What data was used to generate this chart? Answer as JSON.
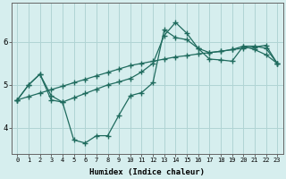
{
  "xlabel": "Humidex (Indice chaleur)",
  "ylabel": "",
  "background_color": "#d6eeee",
  "grid_color": "#b0d4d4",
  "line_color": "#1f6b5e",
  "xlim": [
    -0.5,
    23.5
  ],
  "ylim": [
    3.4,
    6.9
  ],
  "yticks": [
    4,
    5,
    6
  ],
  "xticks": [
    0,
    1,
    2,
    3,
    4,
    5,
    6,
    7,
    8,
    9,
    10,
    11,
    12,
    13,
    14,
    15,
    16,
    17,
    18,
    19,
    20,
    21,
    22,
    23
  ],
  "line1_x": [
    0,
    1,
    2,
    3,
    4,
    5,
    6,
    7,
    8,
    9,
    10,
    11,
    12,
    13,
    14,
    15,
    16,
    17,
    18,
    19,
    20,
    21,
    22,
    23
  ],
  "line1_y": [
    4.65,
    4.73,
    4.81,
    4.89,
    4.97,
    5.05,
    5.13,
    5.21,
    5.29,
    5.37,
    5.45,
    5.5,
    5.55,
    5.6,
    5.65,
    5.68,
    5.72,
    5.75,
    5.78,
    5.82,
    5.85,
    5.88,
    5.92,
    5.5
  ],
  "line2_x": [
    0,
    1,
    2,
    3,
    4,
    5,
    6,
    7,
    8,
    9,
    10,
    11,
    12,
    13,
    14,
    15,
    16,
    17,
    18,
    19,
    20,
    21,
    22,
    23
  ],
  "line2_y": [
    4.65,
    5.0,
    5.25,
    4.75,
    4.6,
    4.7,
    4.8,
    4.9,
    5.0,
    5.07,
    5.15,
    5.3,
    5.5,
    6.15,
    6.45,
    6.2,
    5.85,
    5.75,
    5.78,
    5.82,
    5.9,
    5.9,
    5.85,
    5.5
  ],
  "line3_x": [
    0,
    1,
    2,
    3,
    4,
    5,
    6,
    7,
    8,
    9,
    10,
    11,
    12,
    13,
    14,
    15,
    16,
    17,
    18,
    19,
    20,
    21,
    22,
    23
  ],
  "line3_y": [
    4.65,
    5.0,
    5.25,
    4.65,
    4.6,
    3.72,
    3.65,
    3.82,
    3.82,
    4.3,
    4.75,
    4.82,
    5.05,
    6.28,
    6.1,
    6.05,
    5.85,
    5.6,
    5.58,
    5.55,
    5.9,
    5.82,
    5.7,
    5.5
  ]
}
